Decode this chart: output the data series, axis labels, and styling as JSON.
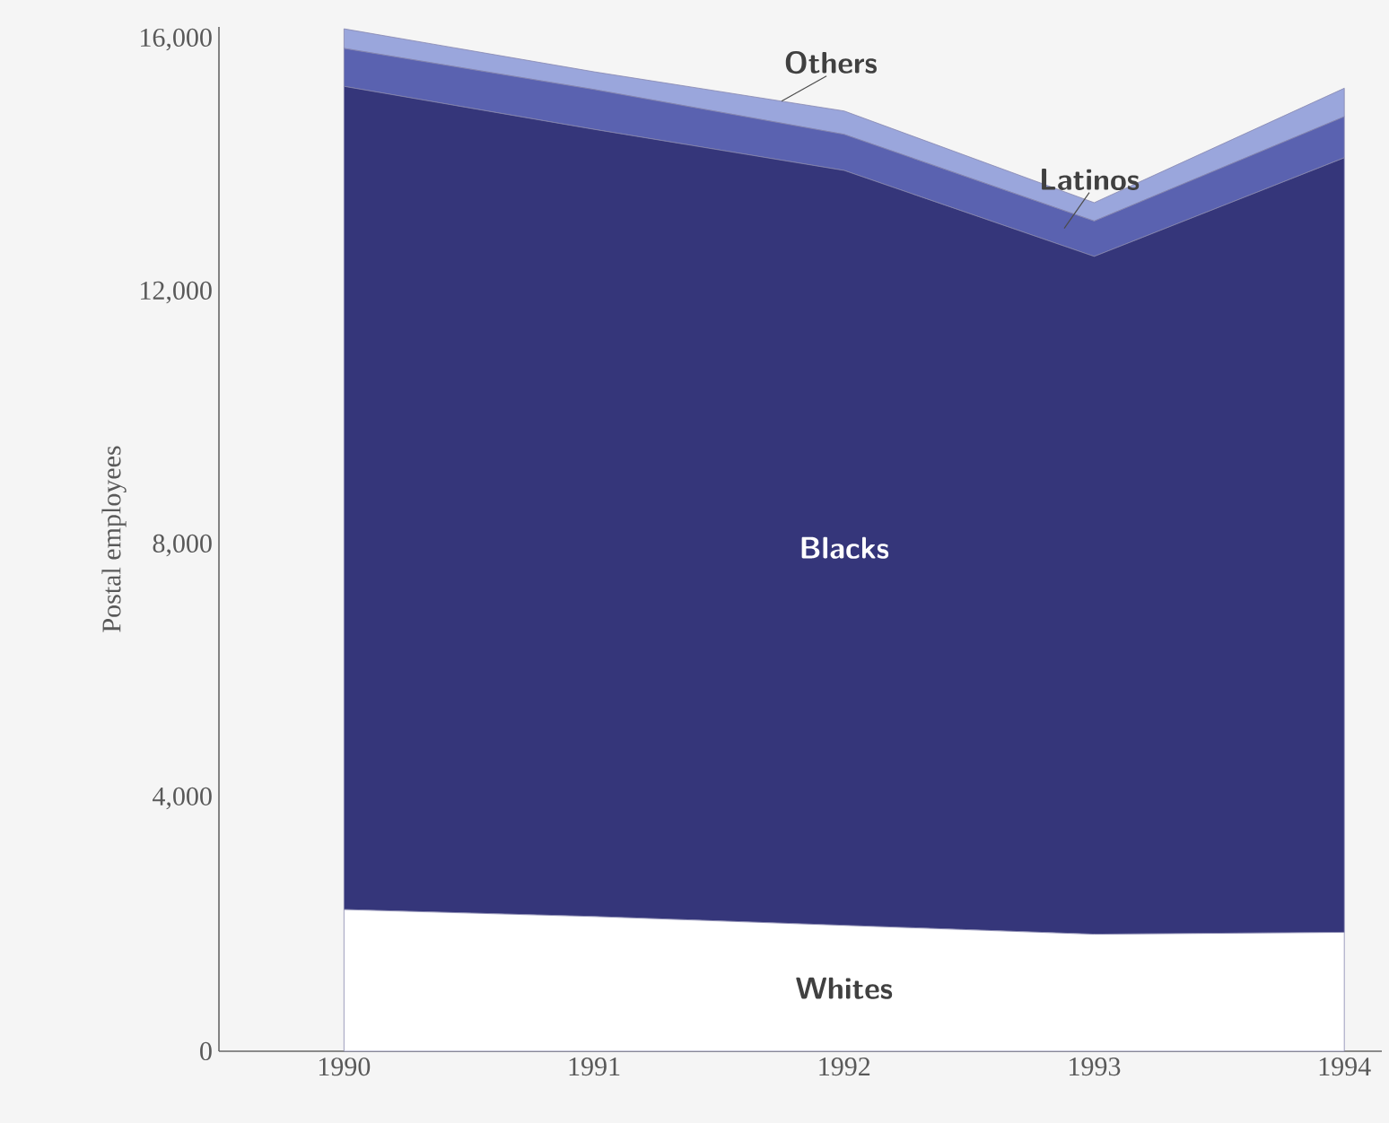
{
  "chart_data": {
    "type": "area",
    "stacked": true,
    "ylabel": "Postal employees",
    "x": [
      1990,
      1991,
      1992,
      1993,
      1994
    ],
    "xlim": [
      1989.5,
      1994.15
    ],
    "xticks": [
      1990,
      1991,
      1992,
      1993,
      1994
    ],
    "ylim": [
      0,
      16200
    ],
    "yticks": [
      0,
      {
        "value": 4000,
        "label": "4,000"
      },
      {
        "value": 8000,
        "label": "8,000"
      },
      {
        "value": 12000,
        "label": "12,000"
      },
      {
        "value": 16000,
        "label": "16,000"
      }
    ],
    "series": [
      {
        "name": "Whites",
        "color": "#ffffff",
        "values": [
          2240,
          2130,
          1990,
          1850,
          1880
        ]
      },
      {
        "name": "Blacks",
        "color": "#35367a",
        "values": [
          13020,
          12450,
          11940,
          10720,
          12250
        ]
      },
      {
        "name": "Latinos",
        "color": "#5a62b0",
        "values": [
          600,
          630,
          570,
          560,
          650
        ]
      },
      {
        "name": "Others",
        "color": "#9aa6dc",
        "values": [
          310,
          280,
          370,
          290,
          450
        ]
      }
    ]
  }
}
